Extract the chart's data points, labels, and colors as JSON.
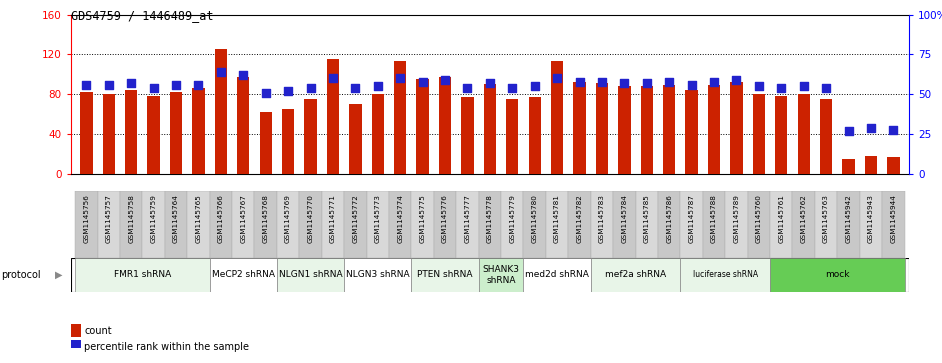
{
  "title": "GDS4759 / 1446489_at",
  "samples": [
    "GSM1145756",
    "GSM1145757",
    "GSM1145758",
    "GSM1145759",
    "GSM1145764",
    "GSM1145765",
    "GSM1145766",
    "GSM1145767",
    "GSM1145768",
    "GSM1145769",
    "GSM1145770",
    "GSM1145771",
    "GSM1145772",
    "GSM1145773",
    "GSM1145774",
    "GSM1145775",
    "GSM1145776",
    "GSM1145777",
    "GSM1145778",
    "GSM1145779",
    "GSM1145780",
    "GSM1145781",
    "GSM1145782",
    "GSM1145783",
    "GSM1145784",
    "GSM1145785",
    "GSM1145786",
    "GSM1145787",
    "GSM1145788",
    "GSM1145789",
    "GSM1145760",
    "GSM1145761",
    "GSM1145762",
    "GSM1145763",
    "GSM1145942",
    "GSM1145943",
    "GSM1145944"
  ],
  "counts": [
    82,
    80,
    84,
    78,
    82,
    86,
    125,
    97,
    62,
    65,
    75,
    115,
    70,
    80,
    113,
    95,
    97,
    77,
    90,
    75,
    77,
    113,
    92,
    91,
    88,
    88,
    89,
    84,
    89,
    92,
    80,
    78,
    80,
    75,
    15,
    18,
    17
  ],
  "percentiles": [
    56,
    56,
    57,
    54,
    56,
    56,
    64,
    62,
    51,
    52,
    54,
    60,
    54,
    55,
    60,
    58,
    59,
    54,
    57,
    54,
    55,
    60,
    58,
    58,
    57,
    57,
    58,
    56,
    58,
    59,
    55,
    54,
    55,
    54,
    27,
    29,
    28
  ],
  "protocols": [
    {
      "label": "FMR1 shRNA",
      "start": 0,
      "end": 6,
      "color": "#e8f5e8"
    },
    {
      "label": "MeCP2 shRNA",
      "start": 6,
      "end": 9,
      "color": "#ffffff"
    },
    {
      "label": "NLGN1 shRNA",
      "start": 9,
      "end": 12,
      "color": "#e8f5e8"
    },
    {
      "label": "NLGN3 shRNA",
      "start": 12,
      "end": 15,
      "color": "#ffffff"
    },
    {
      "label": "PTEN shRNA",
      "start": 15,
      "end": 18,
      "color": "#e8f5e8"
    },
    {
      "label": "SHANK3\nshRNA",
      "start": 18,
      "end": 20,
      "color": "#cceecc"
    },
    {
      "label": "med2d shRNA",
      "start": 20,
      "end": 23,
      "color": "#ffffff"
    },
    {
      "label": "mef2a shRNA",
      "start": 23,
      "end": 27,
      "color": "#e8f5e8"
    },
    {
      "label": "luciferase shRNA",
      "start": 27,
      "end": 31,
      "color": "#e8f5e8"
    },
    {
      "label": "mock",
      "start": 31,
      "end": 37,
      "color": "#66cc55"
    }
  ],
  "bar_color": "#cc2200",
  "dot_color": "#2222cc",
  "left_ylim": [
    0,
    160
  ],
  "right_ylim": [
    0,
    100
  ],
  "left_yticks": [
    0,
    40,
    80,
    120,
    160
  ],
  "right_yticks": [
    0,
    25,
    50,
    75,
    100
  ],
  "right_yticklabels": [
    "0",
    "25",
    "50",
    "75",
    "100%"
  ],
  "grid_values": [
    40,
    80,
    120
  ],
  "bar_width": 0.55,
  "dot_size": 28,
  "xtick_bg": "#d0d0d0"
}
